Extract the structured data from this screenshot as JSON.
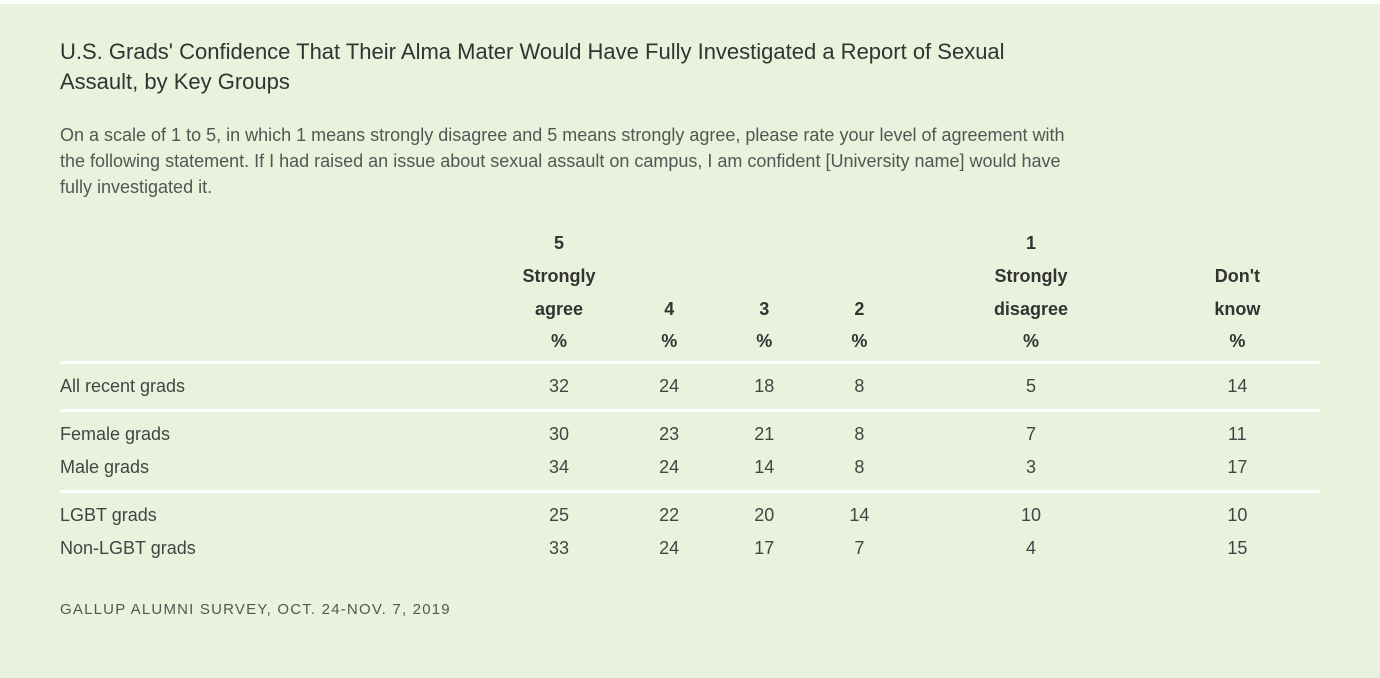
{
  "chart_data": {
    "type": "table",
    "title": "U.S. Grads' Confidence That Their Alma Mater Would Have Fully Investigated a Report of Sexual Assault, by Key Groups",
    "subtitle": "On a scale of 1 to 5, in which 1 means strongly disagree and 5 means strongly agree, please rate your level of agreement with the following statement. If I had raised an issue about sexual assault on campus, I am confident [University name] would have fully investigated it.",
    "columns": [
      {
        "lines": [
          "5",
          "Strongly",
          "agree"
        ],
        "unit": "%"
      },
      {
        "lines": [
          "",
          "",
          "4"
        ],
        "unit": "%"
      },
      {
        "lines": [
          "",
          "",
          "3"
        ],
        "unit": "%"
      },
      {
        "lines": [
          "",
          "",
          "2"
        ],
        "unit": "%"
      },
      {
        "lines": [
          "1",
          "Strongly",
          "disagree"
        ],
        "unit": "%"
      },
      {
        "lines": [
          "",
          "Don't",
          "know"
        ],
        "unit": "%"
      }
    ],
    "groups": [
      {
        "rows": [
          {
            "label": "All recent grads",
            "values": [
              "32",
              "24",
              "18",
              "8",
              "5",
              "14"
            ]
          }
        ]
      },
      {
        "rows": [
          {
            "label": "Female grads",
            "values": [
              "30",
              "23",
              "21",
              "8",
              "7",
              "11"
            ]
          },
          {
            "label": "Male grads",
            "values": [
              "34",
              "24",
              "14",
              "8",
              "3",
              "17"
            ]
          }
        ]
      },
      {
        "rows": [
          {
            "label": "LGBT grads",
            "values": [
              "25",
              "22",
              "20",
              "14",
              "10",
              "10"
            ]
          },
          {
            "label": "Non-LGBT grads",
            "values": [
              "33",
              "24",
              "17",
              "7",
              "4",
              "15"
            ]
          }
        ]
      }
    ],
    "source": "GALLUP ALUMNI SURVEY, OCT. 24-NOV. 7, 2019"
  }
}
